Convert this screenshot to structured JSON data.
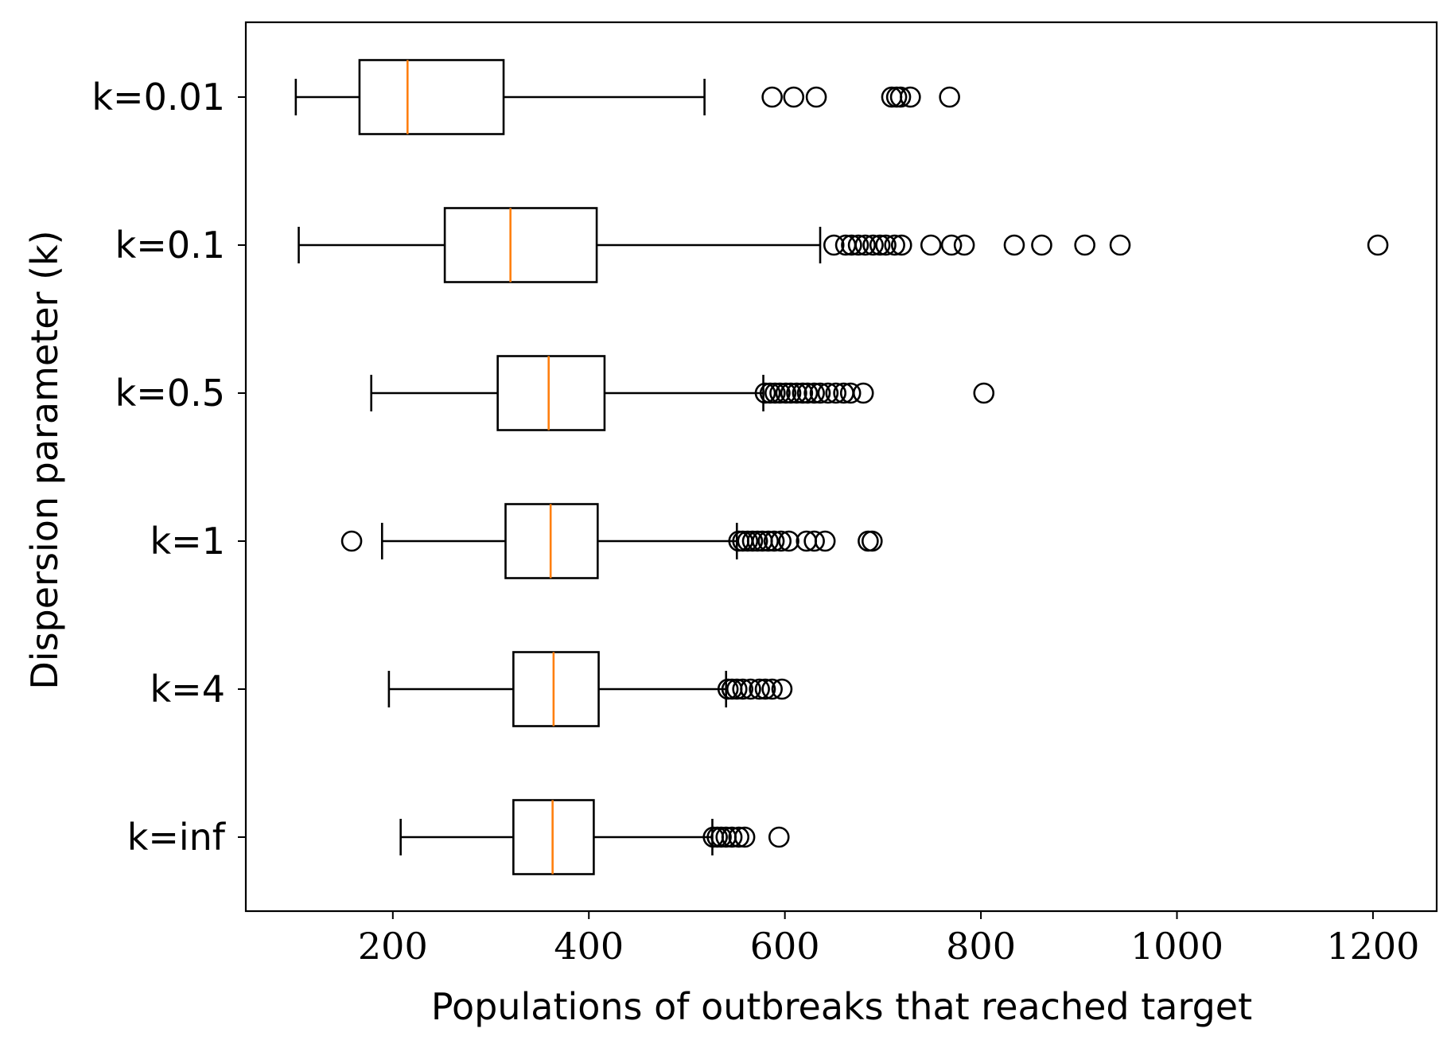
{
  "chart_data": {
    "type": "boxplot",
    "orientation": "horizontal",
    "xlabel": "Populations of outbreaks that reached target",
    "ylabel": "Dispersion parameter (k)",
    "xlim": [
      50,
      1265
    ],
    "x_ticks": [
      200,
      400,
      600,
      800,
      1000,
      1200
    ],
    "colors": {
      "box": "#000000",
      "median": "#ff7f0e",
      "flier": "#000000"
    },
    "categories": [
      "k=0.01",
      "k=0.1",
      "k=0.5",
      "k=1",
      "k=4",
      "k=inf"
    ],
    "series": [
      {
        "category": "k=0.01",
        "whisker_low": 101,
        "q1": 166,
        "median": 215,
        "q3": 313,
        "whisker_high": 518,
        "outliers": [
          587,
          609,
          632,
          709,
          714,
          718,
          728,
          768
        ]
      },
      {
        "category": "k=0.1",
        "whisker_low": 104,
        "q1": 253,
        "median": 320,
        "q3": 408,
        "whisker_high": 636,
        "outliers": [
          650,
          662,
          668,
          675,
          682,
          690,
          697,
          703,
          712,
          719,
          749,
          770,
          783,
          834,
          862,
          906,
          942,
          1205
        ]
      },
      {
        "category": "k=0.5",
        "whisker_low": 178,
        "q1": 307,
        "median": 359,
        "q3": 416,
        "whisker_high": 578,
        "outliers": [
          580,
          585,
          590,
          595,
          601,
          606,
          612,
          618,
          623,
          630,
          636,
          644,
          652,
          660,
          667,
          680,
          803
        ]
      },
      {
        "category": "k=1",
        "whisker_low": 189,
        "q1": 315,
        "median": 361,
        "q3": 409,
        "whisker_high": 551,
        "outliers": [
          158,
          553,
          557,
          562,
          567,
          572,
          577,
          583,
          589,
          596,
          604,
          622,
          630,
          641,
          685,
          689
        ]
      },
      {
        "category": "k=4",
        "whisker_low": 196,
        "q1": 323,
        "median": 364,
        "q3": 410,
        "whisker_high": 540,
        "outliers": [
          542,
          546,
          551,
          557,
          565,
          574,
          580,
          587,
          597
        ]
      },
      {
        "category": "k=inf",
        "whisker_low": 208,
        "q1": 323,
        "median": 363,
        "q3": 405,
        "whisker_high": 526,
        "outliers": [
          527,
          531,
          535,
          540,
          546,
          553,
          559,
          594
        ]
      }
    ]
  }
}
